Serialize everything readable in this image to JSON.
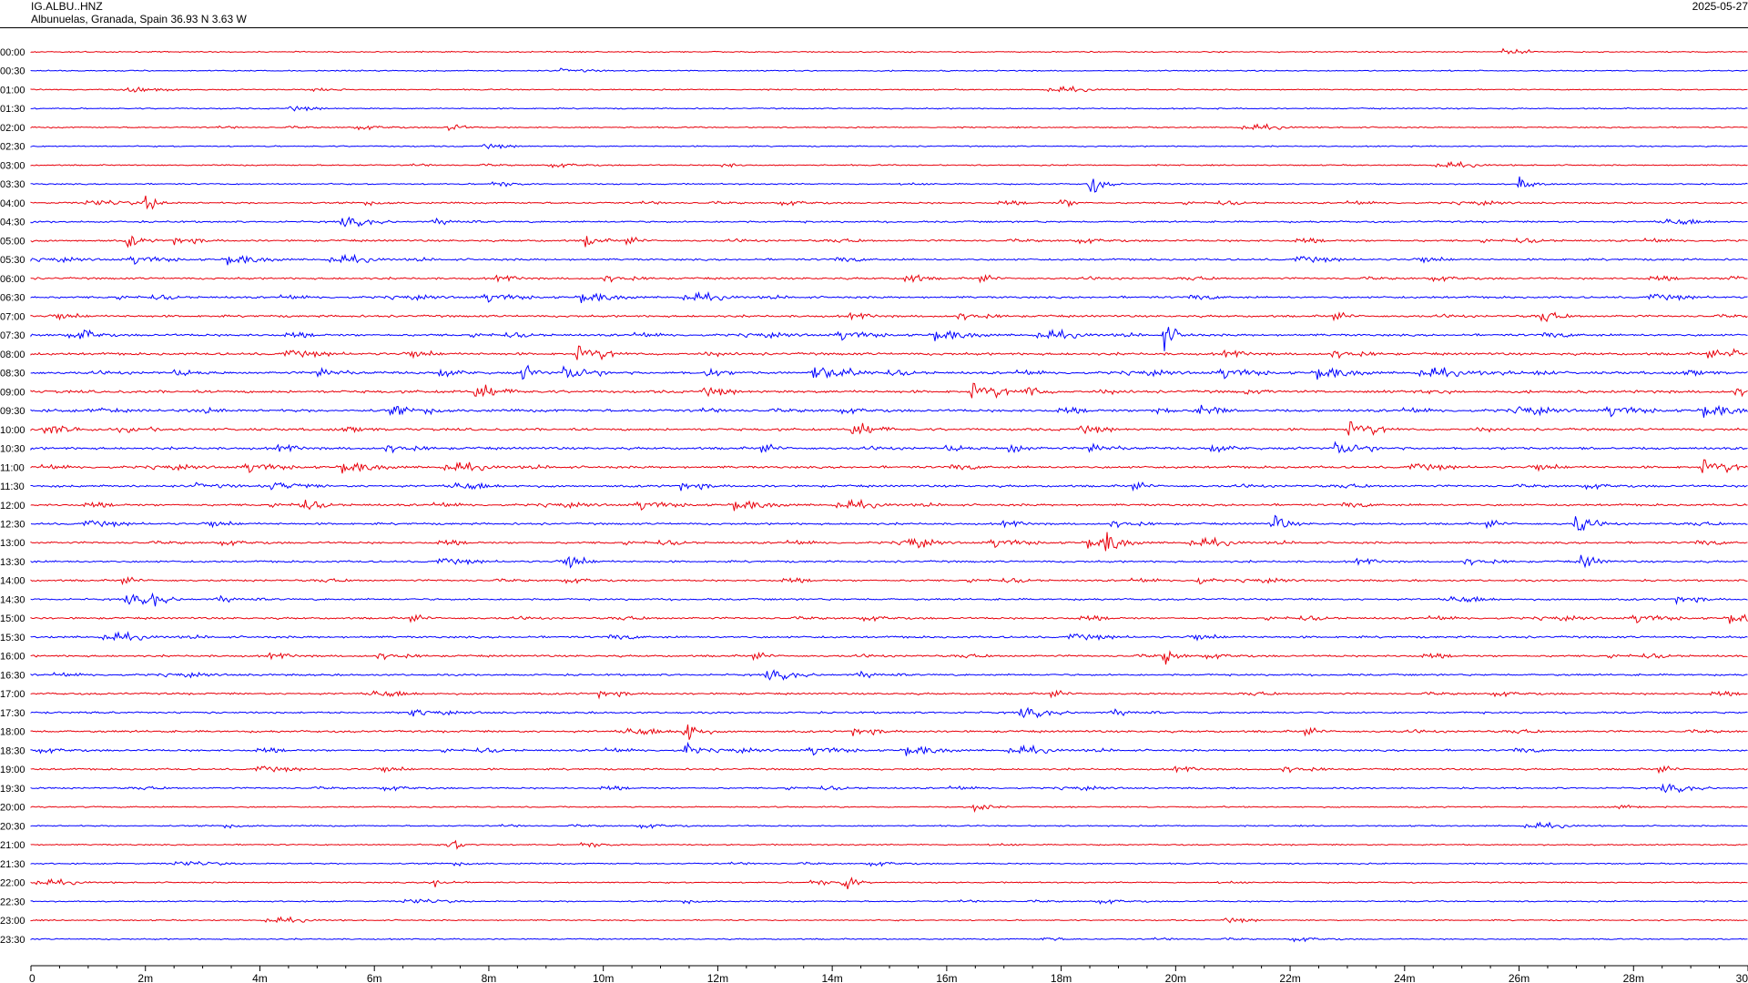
{
  "header": {
    "station": "IG.ALBU..HNZ",
    "location": "Albunuelas, Granada, Spain  36.93 N 3.63 W",
    "date": "2025-05-27"
  },
  "colors": {
    "even_row": "#e8000b",
    "odd_row": "#0000ff",
    "axis": "#000000"
  },
  "chart_data": {
    "type": "line",
    "subtype": "helicorder",
    "xlabel": "",
    "ylabel": "",
    "xlim_minutes": [
      0,
      30
    ],
    "x_tick_labels": [
      "0",
      "2m",
      "4m",
      "6m",
      "8m",
      "10m",
      "12m",
      "14m",
      "16m",
      "18m",
      "20m",
      "22m",
      "24m",
      "26m",
      "28m",
      "30"
    ],
    "row_labels": [
      "00:00",
      "00:30",
      "01:00",
      "01:30",
      "02:00",
      "02:30",
      "03:00",
      "03:30",
      "04:00",
      "04:30",
      "05:00",
      "05:30",
      "06:00",
      "06:30",
      "07:00",
      "07:30",
      "08:00",
      "08:30",
      "09:00",
      "09:30",
      "10:00",
      "10:30",
      "11:00",
      "11:30",
      "12:00",
      "12:30",
      "13:00",
      "13:30",
      "14:00",
      "14:30",
      "15:00",
      "15:30",
      "16:00",
      "16:30",
      "17:00",
      "17:30",
      "18:00",
      "18:30",
      "19:00",
      "19:30",
      "20:00",
      "20:30",
      "21:00",
      "21:30",
      "22:00",
      "22:30",
      "23:00",
      "23:30"
    ],
    "activity_level": [
      0.08,
      0.08,
      0.08,
      0.08,
      0.1,
      0.08,
      0.1,
      0.15,
      0.35,
      0.45,
      0.55,
      0.55,
      0.55,
      0.6,
      0.65,
      0.7,
      0.85,
      0.9,
      0.95,
      0.95,
      0.8,
      0.85,
      0.75,
      0.7,
      0.65,
      0.6,
      0.6,
      0.55,
      0.5,
      0.5,
      0.55,
      0.6,
      0.55,
      0.5,
      0.5,
      0.5,
      0.65,
      0.55,
      0.45,
      0.3,
      0.15,
      0.15,
      0.15,
      0.15,
      0.15,
      0.15,
      0.1,
      0.1
    ],
    "events": [
      {
        "row": 4,
        "minute": 7.3,
        "amp": 10
      },
      {
        "row": 6,
        "minute": 12.1,
        "amp": 6
      },
      {
        "row": 7,
        "minute": 18.5,
        "amp": 22
      },
      {
        "row": 7,
        "minute": 26.0,
        "amp": 14
      },
      {
        "row": 8,
        "minute": 2.0,
        "amp": 14
      },
      {
        "row": 8,
        "minute": 18.0,
        "amp": 10
      },
      {
        "row": 10,
        "minute": 1.7,
        "amp": 12
      },
      {
        "row": 10,
        "minute": 9.7,
        "amp": 12
      },
      {
        "row": 12,
        "minute": 15.3,
        "amp": 16
      },
      {
        "row": 12,
        "minute": 29.7,
        "amp": 10
      },
      {
        "row": 15,
        "minute": 0.9,
        "amp": 12
      },
      {
        "row": 15,
        "minute": 19.8,
        "amp": 22
      },
      {
        "row": 14,
        "minute": 26.4,
        "amp": 12
      },
      {
        "row": 16,
        "minute": 29.7,
        "amp": 12
      },
      {
        "row": 17,
        "minute": 8.6,
        "amp": 14
      },
      {
        "row": 17,
        "minute": 11.8,
        "amp": 14
      },
      {
        "row": 18,
        "minute": 17.4,
        "amp": 14
      },
      {
        "row": 19,
        "minute": 6.3,
        "amp": 12
      },
      {
        "row": 19,
        "minute": 26.0,
        "amp": 10
      },
      {
        "row": 21,
        "minute": 17.1,
        "amp": 14
      },
      {
        "row": 24,
        "minute": 4.7,
        "amp": 12
      },
      {
        "row": 25,
        "minute": 21.7,
        "amp": 20
      },
      {
        "row": 25,
        "minute": 27.0,
        "amp": 26
      },
      {
        "row": 26,
        "minute": 15.3,
        "amp": 16
      },
      {
        "row": 26,
        "minute": 18.8,
        "amp": 18
      },
      {
        "row": 27,
        "minute": 9.4,
        "amp": 12
      },
      {
        "row": 27,
        "minute": 27.1,
        "amp": 18
      },
      {
        "row": 28,
        "minute": 20.3,
        "amp": 12
      },
      {
        "row": 29,
        "minute": 2.1,
        "amp": 12
      },
      {
        "row": 32,
        "minute": 19.8,
        "amp": 12
      },
      {
        "row": 36,
        "minute": 11.4,
        "amp": 30
      },
      {
        "row": 37,
        "minute": 11.4,
        "amp": 14
      },
      {
        "row": 40,
        "minute": 16.5,
        "amp": 12
      },
      {
        "row": 42,
        "minute": 7.3,
        "amp": 14
      },
      {
        "row": 44,
        "minute": 14.2,
        "amp": 18
      },
      {
        "row": 44,
        "minute": 7.0,
        "amp": 12
      },
      {
        "row": 47,
        "minute": 17.7,
        "amp": 6
      }
    ]
  }
}
